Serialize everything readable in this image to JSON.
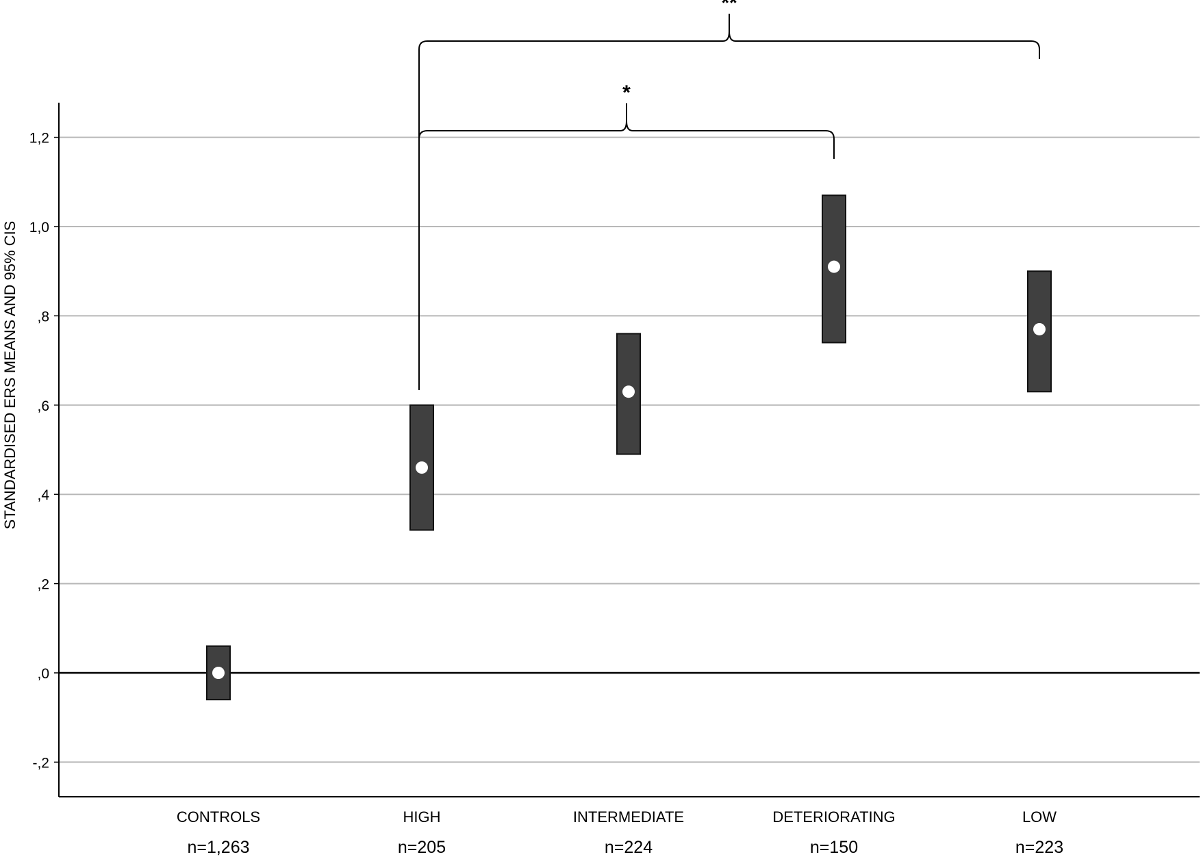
{
  "chart_data": {
    "type": "errorbar",
    "title": "",
    "ylabel": "STANDARDISED ERS MEANS AND 95% CIS",
    "xlabel": "",
    "ylim": [
      -0.28,
      1.28
    ],
    "yticks": [
      {
        "value": -0.2,
        "label": "-,2"
      },
      {
        "value": 0.0,
        "label": ",0"
      },
      {
        "value": 0.2,
        "label": ",2"
      },
      {
        "value": 0.4,
        "label": ",4"
      },
      {
        "value": 0.6,
        "label": ",6"
      },
      {
        "value": 0.8,
        "label": ",8"
      },
      {
        "value": 1.0,
        "label": "1,0"
      },
      {
        "value": 1.2,
        "label": "1,2"
      }
    ],
    "grid": true,
    "categories": [
      "CONTROLS",
      "HIGH",
      "INTERMEDIATE",
      "DETERIORATING",
      "LOW"
    ],
    "n_labels": [
      "n=1,263",
      "n=205",
      "n=224",
      "n=150",
      "n=223"
    ],
    "means": [
      0.0,
      0.46,
      0.63,
      0.91,
      0.77
    ],
    "ci_lower": [
      -0.06,
      0.32,
      0.49,
      0.74,
      0.63
    ],
    "ci_upper": [
      0.06,
      0.6,
      0.76,
      1.07,
      0.9
    ],
    "significance": [
      {
        "from": "HIGH",
        "to": "DETERIORATING",
        "label": "*"
      },
      {
        "from": "HIGH",
        "to": "LOW",
        "label": "**"
      }
    ],
    "colors": {
      "box": "#404040",
      "grid": "#b8b8b8",
      "mean_marker": "#ffffff",
      "axis": "#000000"
    }
  }
}
